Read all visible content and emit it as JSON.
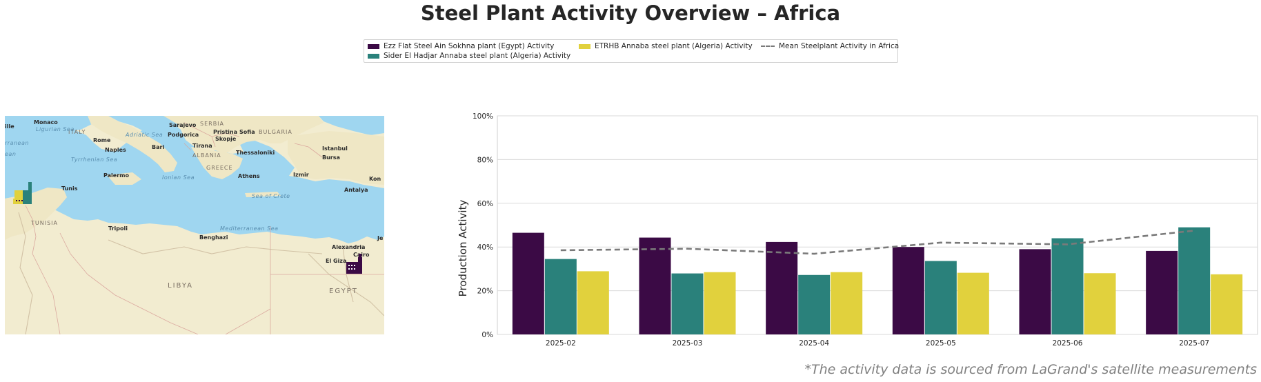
{
  "title": "Steel Plant Activity Overview – Africa",
  "footnote": "*The activity data is sourced from LaGrand's satellite measurements",
  "legend": {
    "items": [
      {
        "label": "Ezz Flat Steel Ain Sokhna plant (Egypt) Activity",
        "color": "#3b0a45",
        "kind": "bar"
      },
      {
        "label": "Sider El Hadjar Annaba steel plant (Algeria) Activity",
        "color": "#2a817b",
        "kind": "bar"
      },
      {
        "label": "ETRHB Annaba steel plant (Algeria) Activity",
        "color": "#e1d13d",
        "kind": "bar"
      },
      {
        "label": "Mean Steelplant Activity in Africa",
        "color": "#7a7a7a",
        "kind": "dashed-line"
      }
    ]
  },
  "map": {
    "labels": [
      {
        "text": "ITALY",
        "cls": "country"
      },
      {
        "text": "Adriatic Sea",
        "cls": "sea"
      },
      {
        "text": "Sarajevo",
        "cls": "city"
      },
      {
        "text": "SERBIA",
        "cls": "country"
      },
      {
        "text": "Podgorica",
        "cls": "city"
      },
      {
        "text": "Pristina",
        "cls": "city"
      },
      {
        "text": "Sofia",
        "cls": "city"
      },
      {
        "text": "BULGARIA",
        "cls": "country"
      },
      {
        "text": "Skopje",
        "cls": "city"
      },
      {
        "text": "Rome",
        "cls": "city"
      },
      {
        "text": "Bari",
        "cls": "city"
      },
      {
        "text": "Tirana",
        "cls": "city"
      },
      {
        "text": "Naples",
        "cls": "city"
      },
      {
        "text": "ALBANIA",
        "cls": "country"
      },
      {
        "text": "Thessaloniki",
        "cls": "city"
      },
      {
        "text": "Istanbul",
        "cls": "city"
      },
      {
        "text": "Bursa",
        "cls": "city"
      },
      {
        "text": "Tyrrhenian Sea",
        "cls": "sea"
      },
      {
        "text": "GREECE",
        "cls": "country"
      },
      {
        "text": "Palermo",
        "cls": "city"
      },
      {
        "text": "Ionian Sea",
        "cls": "sea"
      },
      {
        "text": "Athens",
        "cls": "city"
      },
      {
        "text": "Izmir",
        "cls": "city"
      },
      {
        "text": "Tunis",
        "cls": "city"
      },
      {
        "text": "Sea of Crete",
        "cls": "sea"
      },
      {
        "text": "Antalya",
        "cls": "city"
      },
      {
        "text": "TUNISIA",
        "cls": "country"
      },
      {
        "text": "Mediterranean Sea",
        "cls": "sea"
      },
      {
        "text": "Tripoli",
        "cls": "city"
      },
      {
        "text": "Benghazi",
        "cls": "city"
      },
      {
        "text": "Alexandria",
        "cls": "city"
      },
      {
        "text": "El Giza",
        "cls": "city"
      },
      {
        "text": "Cairo",
        "cls": "city"
      },
      {
        "text": "LIBYA",
        "cls": "country-big"
      },
      {
        "text": "EGYPT",
        "cls": "country-big"
      },
      {
        "text": "Ligurian Sea",
        "cls": "sea"
      },
      {
        "text": "Monaco",
        "cls": "city"
      },
      {
        "text": "ille",
        "cls": "city"
      },
      {
        "text": "rranean",
        "cls": "sea"
      },
      {
        "text": "ean",
        "cls": "sea"
      },
      {
        "text": "Kon",
        "cls": "city"
      },
      {
        "text": "Je",
        "cls": "city"
      }
    ],
    "markers": [
      {
        "plant": "ETRHB Annaba steel plant (Algeria)",
        "color": "#e1d13d"
      },
      {
        "plant": "Sider El Hadjar Annaba steel plant (Algeria)",
        "color": "#2a817b"
      },
      {
        "plant": "Ezz Flat Steel Ain Sokhna plant (Egypt)",
        "color": "#3b0a45"
      }
    ]
  },
  "chart_data": {
    "type": "bar",
    "title": "",
    "xlabel": "",
    "ylabel": "Production Activity",
    "categories": [
      "2025-02",
      "2025-03",
      "2025-04",
      "2025-05",
      "2025-06",
      "2025-07"
    ],
    "yticks": [
      "0%",
      "20%",
      "40%",
      "60%",
      "80%",
      "100%"
    ],
    "ylim": [
      0,
      100
    ],
    "grid": true,
    "legend_position": "top-center",
    "series": [
      {
        "name": "Ezz Flat Steel Ain Sokhna plant (Egypt) Activity",
        "color": "#3b0a45",
        "values": [
          46.5,
          44.3,
          42.3,
          40.0,
          39.0,
          38.2
        ]
      },
      {
        "name": "Sider El Hadjar Annaba steel plant (Algeria) Activity",
        "color": "#2a817b",
        "values": [
          34.5,
          27.9,
          27.2,
          33.6,
          44.0,
          49.0
        ]
      },
      {
        "name": "ETRHB Annaba steel plant (Algeria) Activity",
        "color": "#e1d13d",
        "values": [
          28.9,
          28.5,
          28.5,
          28.2,
          28.0,
          27.5
        ]
      }
    ],
    "mean_line": {
      "name": "Mean Steelplant Activity in Africa",
      "color": "#7a7a7a",
      "style": "dashed",
      "values": [
        38.5,
        39.2,
        36.9,
        42.0,
        41.2,
        47.5
      ]
    }
  }
}
